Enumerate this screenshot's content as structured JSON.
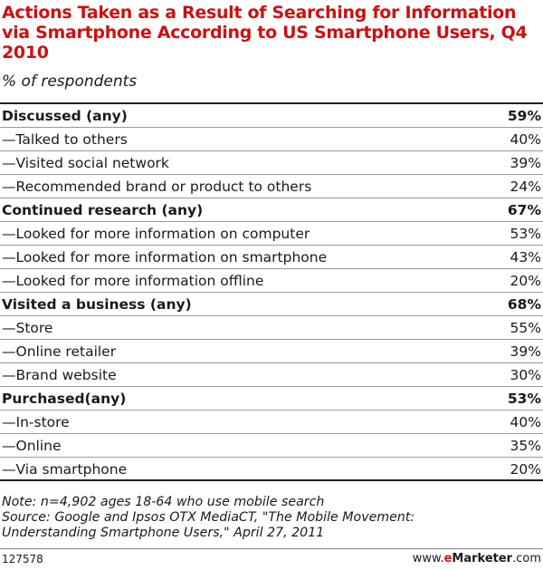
{
  "chart_data": {
    "type": "table",
    "title": "Actions Taken as a Result of Searching for Information via Smartphone According to US Smartphone Users, Q4 2010",
    "subtitle": "% of respondents",
    "rows": [
      {
        "label": "Discussed (any)",
        "value": "59%",
        "group": true
      },
      {
        "label": "—Talked to others",
        "value": "40%",
        "group": false
      },
      {
        "label": "—Visited social network",
        "value": "39%",
        "group": false
      },
      {
        "label": "—Recommended brand or product to others",
        "value": "24%",
        "group": false
      },
      {
        "label": "Continued research (any)",
        "value": "67%",
        "group": true
      },
      {
        "label": "—Looked for more information on computer",
        "value": "53%",
        "group": false
      },
      {
        "label": "—Looked for more information on smartphone",
        "value": "43%",
        "group": false
      },
      {
        "label": "—Looked for more information offline",
        "value": "20%",
        "group": false
      },
      {
        "label": "Visited a business (any)",
        "value": "68%",
        "group": true
      },
      {
        "label": "—Store",
        "value": "55%",
        "group": false
      },
      {
        "label": "—Online retailer",
        "value": "39%",
        "group": false
      },
      {
        "label": "—Brand website",
        "value": "30%",
        "group": false
      },
      {
        "label": "Purchased(any)",
        "value": "53%",
        "group": true
      },
      {
        "label": "—In-store",
        "value": "40%",
        "group": false
      },
      {
        "label": "—Online",
        "value": "35%",
        "group": false
      },
      {
        "label": "—Via smartphone",
        "value": "20%",
        "group": false
      }
    ]
  },
  "notes": {
    "note": "Note: n=4,902 ages 18-64 who use mobile search",
    "source_line1": "Source: Google and Ipsos OTX MediaCT, \"The Mobile Movement:",
    "source_line2": "Understanding Smartphone Users,\" April 27, 2011"
  },
  "footer": {
    "chart_id": "127578",
    "brand_prefix": "www.",
    "brand_e": "e",
    "brand_name": "Marketer",
    "brand_suffix": ".com"
  },
  "colors": {
    "title": "#cc1111",
    "text": "#1a1a1a",
    "rule": "#9a9a9a"
  }
}
